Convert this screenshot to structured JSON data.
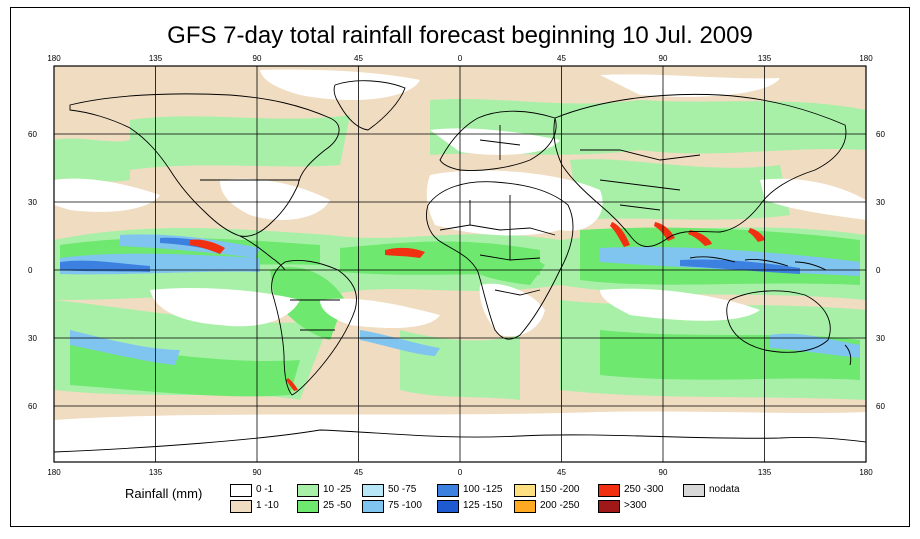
{
  "title": "GFS 7-day total rainfall forecast beginning 10 Jul. 2009",
  "map": {
    "lon_ticks": [
      "180",
      "135",
      "90",
      "45",
      "0",
      "45",
      "90",
      "135",
      "180"
    ],
    "lat_ticks": [
      "60",
      "30",
      "0",
      "30",
      "60"
    ]
  },
  "legend": {
    "label": "Rainfall (mm)",
    "items": [
      {
        "range": "0 -1",
        "color": "#ffffff"
      },
      {
        "range": "1 -10",
        "color": "#f0dcc0"
      },
      {
        "range": "10 -25",
        "color": "#a8f0a8"
      },
      {
        "range": "25 -50",
        "color": "#6ee86e"
      },
      {
        "range": "50 -75",
        "color": "#b8e8f8"
      },
      {
        "range": "75 -100",
        "color": "#80c4f0"
      },
      {
        "range": "100 -125",
        "color": "#3c80e0"
      },
      {
        "range": "125 -150",
        "color": "#1e5ad0"
      },
      {
        "range": "150 -200",
        "color": "#ffe080"
      },
      {
        "range": "200 -250",
        "color": "#ffaa20"
      },
      {
        "range": "250 -300",
        "color": "#f03010"
      },
      {
        "range": ">300",
        "color": "#a01818"
      },
      {
        "range": "nodata",
        "color": "#d8d8d8"
      }
    ]
  }
}
